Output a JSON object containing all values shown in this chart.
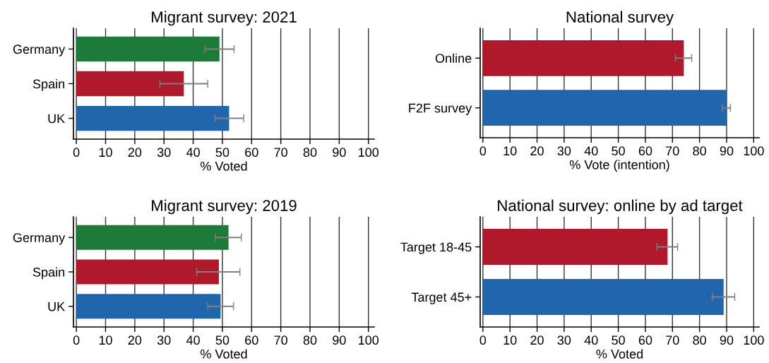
{
  "chart_data": [
    {
      "type": "bar",
      "orientation": "horizontal",
      "title": "Migrant survey: 2021",
      "xlabel": "% Voted",
      "categories": [
        "Germany",
        "Spain",
        "UK"
      ],
      "values": [
        49,
        36.8,
        52.3
      ],
      "colors": [
        "#1e7a38",
        "#b0182b",
        "#2166ac"
      ],
      "errors": [
        [
          44,
          54
        ],
        [
          28.6,
          45
        ],
        [
          47.4,
          57.3
        ]
      ],
      "xlim": [
        -1,
        102
      ],
      "xticks": [
        0,
        10,
        20,
        30,
        40,
        50,
        60,
        70,
        80,
        90,
        100
      ],
      "grid": "x"
    },
    {
      "type": "bar",
      "orientation": "horizontal",
      "title": "National survey",
      "xlabel": "% Vote (intention)",
      "categories": [
        "Online",
        "F2F survey"
      ],
      "values": [
        74.2,
        90
      ],
      "colors": [
        "#b0182b",
        "#2166ac"
      ],
      "errors": [
        [
          71.1,
          77.1
        ],
        [
          88.4,
          91.4
        ]
      ],
      "xlim": [
        -1,
        102
      ],
      "xticks": [
        0,
        10,
        20,
        30,
        40,
        50,
        60,
        70,
        80,
        90,
        100
      ],
      "grid": "x"
    },
    {
      "type": "bar",
      "orientation": "horizontal",
      "title": "Migrant survey: 2019",
      "xlabel": "% Voted",
      "categories": [
        "Germany",
        "Spain",
        "UK"
      ],
      "values": [
        52.1,
        48.8,
        49.4
      ],
      "colors": [
        "#1e7a38",
        "#b0182b",
        "#2166ac"
      ],
      "errors": [
        [
          47.6,
          56.5
        ],
        [
          41.2,
          56
        ],
        [
          45,
          53.8
        ]
      ],
      "xlim": [
        -1,
        102
      ],
      "xticks": [
        0,
        10,
        20,
        30,
        40,
        50,
        60,
        70,
        80,
        90,
        100
      ],
      "grid": "x"
    },
    {
      "type": "bar",
      "orientation": "horizontal",
      "title": "National survey: online by ad target",
      "xlabel": "% Voted",
      "categories": [
        "Target 18-45",
        "Target 45+"
      ],
      "values": [
        68.2,
        88.9
      ],
      "colors": [
        "#b0182b",
        "#2166ac"
      ],
      "errors": [
        [
          64.3,
          71.9
        ],
        [
          84.7,
          93
        ]
      ],
      "xlim": [
        -1,
        102
      ],
      "xticks": [
        0,
        10,
        20,
        30,
        40,
        50,
        60,
        70,
        80,
        90,
        100
      ],
      "grid": "x"
    }
  ]
}
